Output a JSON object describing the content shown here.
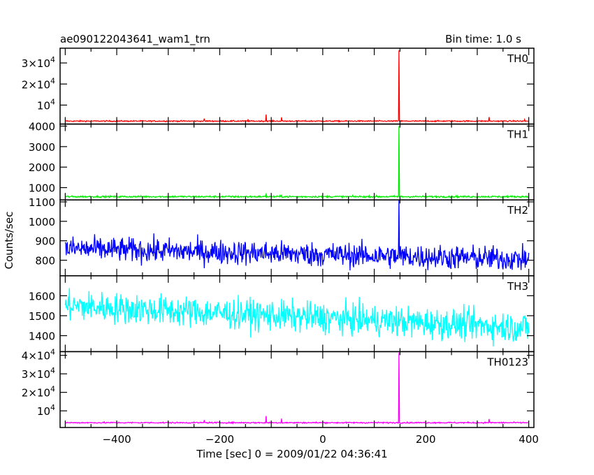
{
  "header": {
    "title": "ae090122043641_wam1_trn",
    "bin_time": "Bin time: 1.0 s"
  },
  "axes": {
    "xlabel": "Time [sec] 0 = 2009/01/22 04:36:41",
    "ylabel": "Counts/sec"
  },
  "chart_data": {
    "type": "line",
    "x_range": [
      -510,
      410
    ],
    "x_ticks": [
      -400,
      -200,
      0,
      200,
      400
    ],
    "x_tick_labels": [
      "−400",
      "−200",
      "0",
      "200",
      "400"
    ],
    "panels": [
      {
        "name": "TH0",
        "color": "#ff0000",
        "ylim": [
          1000,
          37000
        ],
        "y_ticks": [
          10000,
          20000,
          30000
        ],
        "y_tick_labels": [
          "10^4",
          "2×10^4",
          "3×10^4"
        ],
        "baseline": 2400,
        "noise": 200,
        "drift": 0,
        "peak": {
          "x": 148,
          "y": 36000
        },
        "bumps": [
          {
            "x": -230,
            "y": 3600
          },
          {
            "x": -145,
            "y": 3300
          },
          {
            "x": -110,
            "y": 5500
          },
          {
            "x": -80,
            "y": 4200
          },
          {
            "x": 323,
            "y": 4300
          },
          {
            "x": 392,
            "y": 3200
          }
        ]
      },
      {
        "name": "TH1",
        "color": "#00ee00",
        "ylim": [
          400,
          4100
        ],
        "y_ticks": [
          1000,
          2000,
          3000,
          4000
        ],
        "y_tick_labels": [
          "1000",
          "2000",
          "3000",
          "4000"
        ],
        "baseline": 560,
        "noise": 30,
        "drift": 0,
        "peak": {
          "x": 148,
          "y": 4000
        },
        "bumps": [
          {
            "x": -110,
            "y": 720
          },
          {
            "x": -80,
            "y": 650
          }
        ]
      },
      {
        "name": "TH2",
        "color": "#0000ff",
        "ylim": [
          720,
          1110
        ],
        "y_ticks": [
          800,
          900,
          1000,
          1100
        ],
        "y_tick_labels": [
          "800",
          "900",
          "1000",
          "1100"
        ],
        "baseline": 860,
        "noise": 45,
        "drift": -55,
        "peak": {
          "x": 148,
          "y": 1110
        },
        "bumps": []
      },
      {
        "name": "TH3",
        "color": "#00ffff",
        "ylim": [
          1320,
          1700
        ],
        "y_ticks": [
          1400,
          1500,
          1600
        ],
        "y_tick_labels": [
          "1400",
          "1500",
          "1600"
        ],
        "baseline": 1550,
        "noise": 55,
        "drift": -110,
        "peak": null,
        "bumps": []
      },
      {
        "name": "TH0123",
        "color": "#ff00ff",
        "ylim": [
          1000,
          42000
        ],
        "y_ticks": [
          10000,
          20000,
          30000,
          40000
        ],
        "y_tick_labels": [
          "10^4",
          "2×10^4",
          "3×10^4",
          "4×10^4"
        ],
        "baseline": 3600,
        "noise": 250,
        "drift": 0,
        "peak": {
          "x": 148,
          "y": 41500
        },
        "bumps": [
          {
            "x": -230,
            "y": 5000
          },
          {
            "x": -110,
            "y": 7200
          },
          {
            "x": -80,
            "y": 5800
          },
          {
            "x": 323,
            "y": 5600
          }
        ]
      }
    ]
  }
}
